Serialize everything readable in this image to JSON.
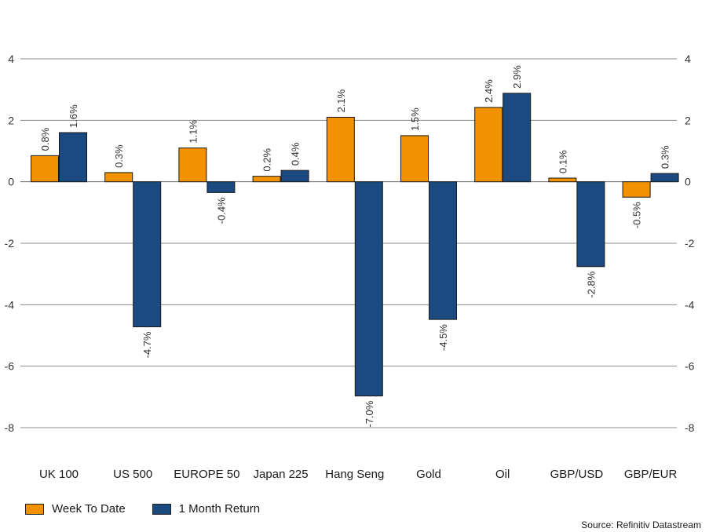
{
  "chart_data": {
    "type": "bar",
    "categories": [
      "UK 100",
      "US 500",
      "EUROPE 50",
      "Japan 225",
      "Hang Seng",
      "Gold",
      "Oil",
      "GBP/USD",
      "GBP/EUR"
    ],
    "series": [
      {
        "name": "Week To Date",
        "color": "#f39200",
        "values": [
          0.8,
          0.3,
          1.1,
          0.2,
          2.1,
          1.5,
          2.4,
          0.1,
          -0.5
        ],
        "plot_values": [
          0.85,
          0.3,
          1.1,
          0.18,
          2.1,
          1.5,
          2.42,
          0.12,
          -0.5
        ],
        "labels": [
          "0.8%",
          "0.3%",
          "1.1%",
          "0.2%",
          "2.1%",
          "1.5%",
          "2.4%",
          "0.1%",
          "-0.5%"
        ]
      },
      {
        "name": "1 Month Return",
        "color": "#1a4a80",
        "values": [
          1.6,
          -4.7,
          -0.4,
          0.4,
          -7.0,
          -4.5,
          2.9,
          -2.8,
          0.3
        ],
        "plot_values": [
          1.6,
          -4.72,
          -0.35,
          0.37,
          -6.97,
          -4.48,
          2.88,
          -2.76,
          0.27
        ],
        "labels": [
          "1.6%",
          "-4.7%",
          "-0.4%",
          "0.4%",
          "-7.0%",
          "-4.5%",
          "2.9%",
          "-2.8%",
          "0.3%"
        ]
      }
    ],
    "yticks": [
      "4",
      "2",
      "0",
      "-2",
      "-4",
      "-6",
      "-8"
    ],
    "ytick_values": [
      4,
      2,
      0,
      -2,
      -4,
      -6,
      -8
    ],
    "ylim": [
      -8,
      4
    ],
    "dual_axis_mirrored": true,
    "grid": true,
    "legend_position": "bottom-left",
    "source": "Source: Refinitiv Datastream"
  }
}
